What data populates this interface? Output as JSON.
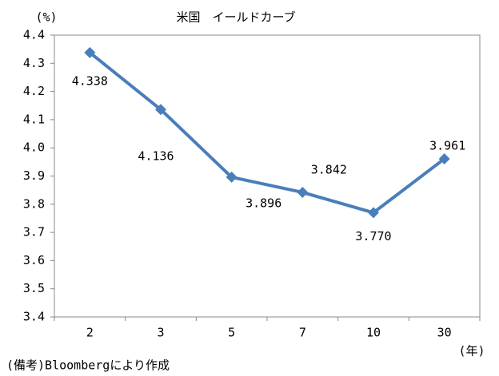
{
  "chart_data": {
    "type": "line",
    "title": "米国　イールドカーブ",
    "y_label": "(%)",
    "x_label": "(年)",
    "note": "(備考)Bloombergにより作成",
    "categories": [
      "2",
      "3",
      "5",
      "7",
      "10",
      "30"
    ],
    "series": [
      {
        "name": "米国",
        "color": "#4a7ebb",
        "values": [
          4.338,
          4.136,
          3.896,
          3.842,
          3.77,
          3.961
        ],
        "value_labels": [
          "4.338",
          "4.136",
          "3.896",
          "3.842",
          "3.770",
          "3.961"
        ]
      }
    ],
    "ylim": [
      3.4,
      4.4
    ],
    "yticks": [
      3.4,
      3.5,
      3.6,
      3.7,
      3.8,
      3.9,
      {
        "value": 4,
        "label": "4.0"
      },
      4.1,
      4.2,
      4.3,
      4.4
    ],
    "grid": false,
    "legend": false
  }
}
